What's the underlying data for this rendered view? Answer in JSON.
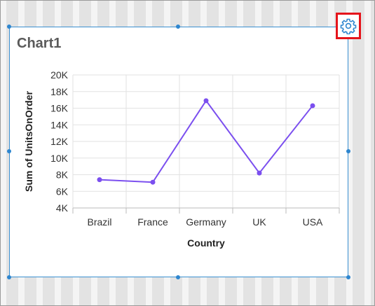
{
  "chart_title": "Chart1",
  "settings": {
    "icon": "gear-icon",
    "highlight_color": "#e5141b"
  },
  "colors": {
    "line": "#7b4fef",
    "selection": "#2e86cf"
  },
  "chart_data": {
    "type": "line",
    "title": "Chart1",
    "xlabel": "Country",
    "ylabel": "Sum of UnitsOnOrder",
    "categories": [
      "Brazil",
      "France",
      "Germany",
      "UK",
      "USA"
    ],
    "series": [
      {
        "name": "Sum of UnitsOnOrder",
        "values": [
          7400,
          7100,
          16900,
          8200,
          16300
        ]
      }
    ],
    "ylim": [
      4000,
      20000
    ],
    "yticks": [
      4000,
      6000,
      8000,
      10000,
      12000,
      14000,
      16000,
      18000,
      20000
    ],
    "ytick_labels": [
      "4K",
      "6K",
      "8K",
      "10K",
      "12K",
      "14K",
      "16K",
      "18K",
      "20K"
    ],
    "grid": true
  }
}
